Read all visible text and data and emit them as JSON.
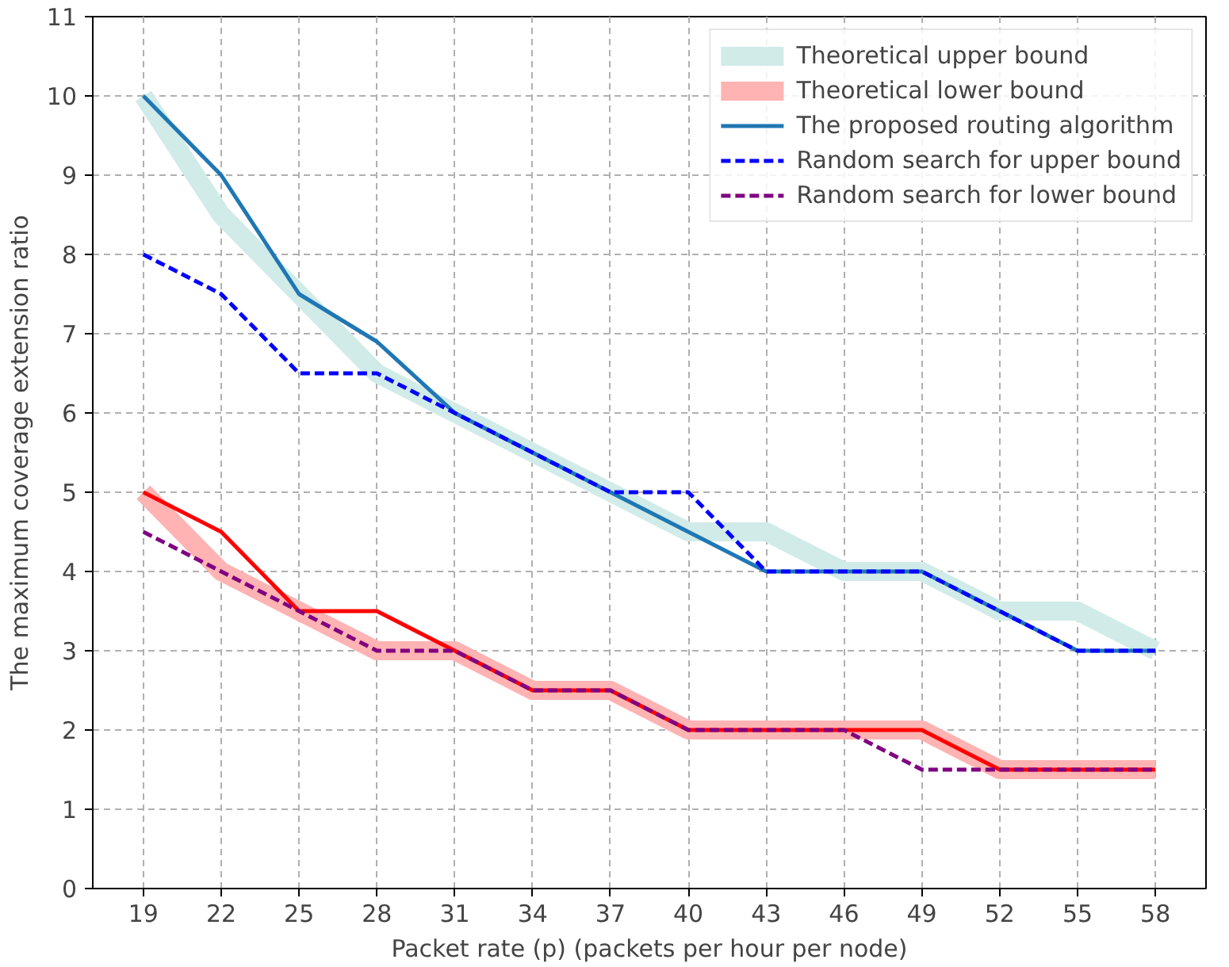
{
  "chart_data": {
    "type": "line",
    "xlabel": "Packet rate (p) (packets per hour per node)",
    "ylabel": "The maximum coverage extension ratio",
    "x": [
      19,
      22,
      25,
      28,
      31,
      34,
      37,
      40,
      43,
      46,
      49,
      52,
      55,
      58
    ],
    "xlim": [
      17.05,
      59.95
    ],
    "xticks": [
      19,
      22,
      25,
      28,
      31,
      34,
      37,
      40,
      43,
      46,
      49,
      52,
      55,
      58
    ],
    "ylim": [
      0,
      11
    ],
    "yticks": [
      0,
      1,
      2,
      3,
      4,
      5,
      6,
      7,
      8,
      9,
      10,
      11
    ],
    "grid": true,
    "legend": "top right",
    "series": [
      {
        "name": "Theoretical upper bound",
        "color": "#d1ebe8",
        "line_style": "solid",
        "values": [
          10,
          8.5,
          7.5,
          6.5,
          6,
          5.5,
          5,
          4.5,
          4.5,
          4,
          4,
          3.5,
          3.5,
          3
        ]
      },
      {
        "name": "Theoretical lower bound",
        "color": "#ffb3b3",
        "line_style": "solid",
        "values": [
          5,
          4,
          3.5,
          3,
          3,
          2.5,
          2.5,
          2,
          2,
          2,
          2,
          1.5,
          1.5,
          1.5
        ]
      },
      {
        "name": "The proposed routing algorithm",
        "color": "#1f77b4",
        "line_style": "solid",
        "values": [
          10,
          9,
          7.5,
          6.9,
          6,
          5.5,
          5,
          4.5,
          4,
          4,
          4,
          3.5,
          3,
          3
        ]
      },
      {
        "color": "#ff0000",
        "line_style": "solid",
        "values": [
          5,
          4.5,
          3.5,
          3.5,
          3,
          2.5,
          2.5,
          2,
          2,
          2,
          2,
          1.5,
          1.5,
          1.5
        ]
      },
      {
        "name": "Random search for upper bound",
        "color": "#0000ff",
        "line_style": "dashed",
        "values": [
          8,
          7.5,
          6.5,
          6.5,
          6,
          5.5,
          5,
          5,
          4,
          4,
          4,
          3.5,
          3,
          3
        ]
      },
      {
        "name": "Random search for lower bound",
        "color": "#800080",
        "line_style": "dashed",
        "values": [
          4.5,
          4,
          3.5,
          3,
          3,
          2.5,
          2.5,
          2,
          2,
          2,
          1.5,
          1.5,
          1.5,
          1.5
        ]
      }
    ]
  }
}
